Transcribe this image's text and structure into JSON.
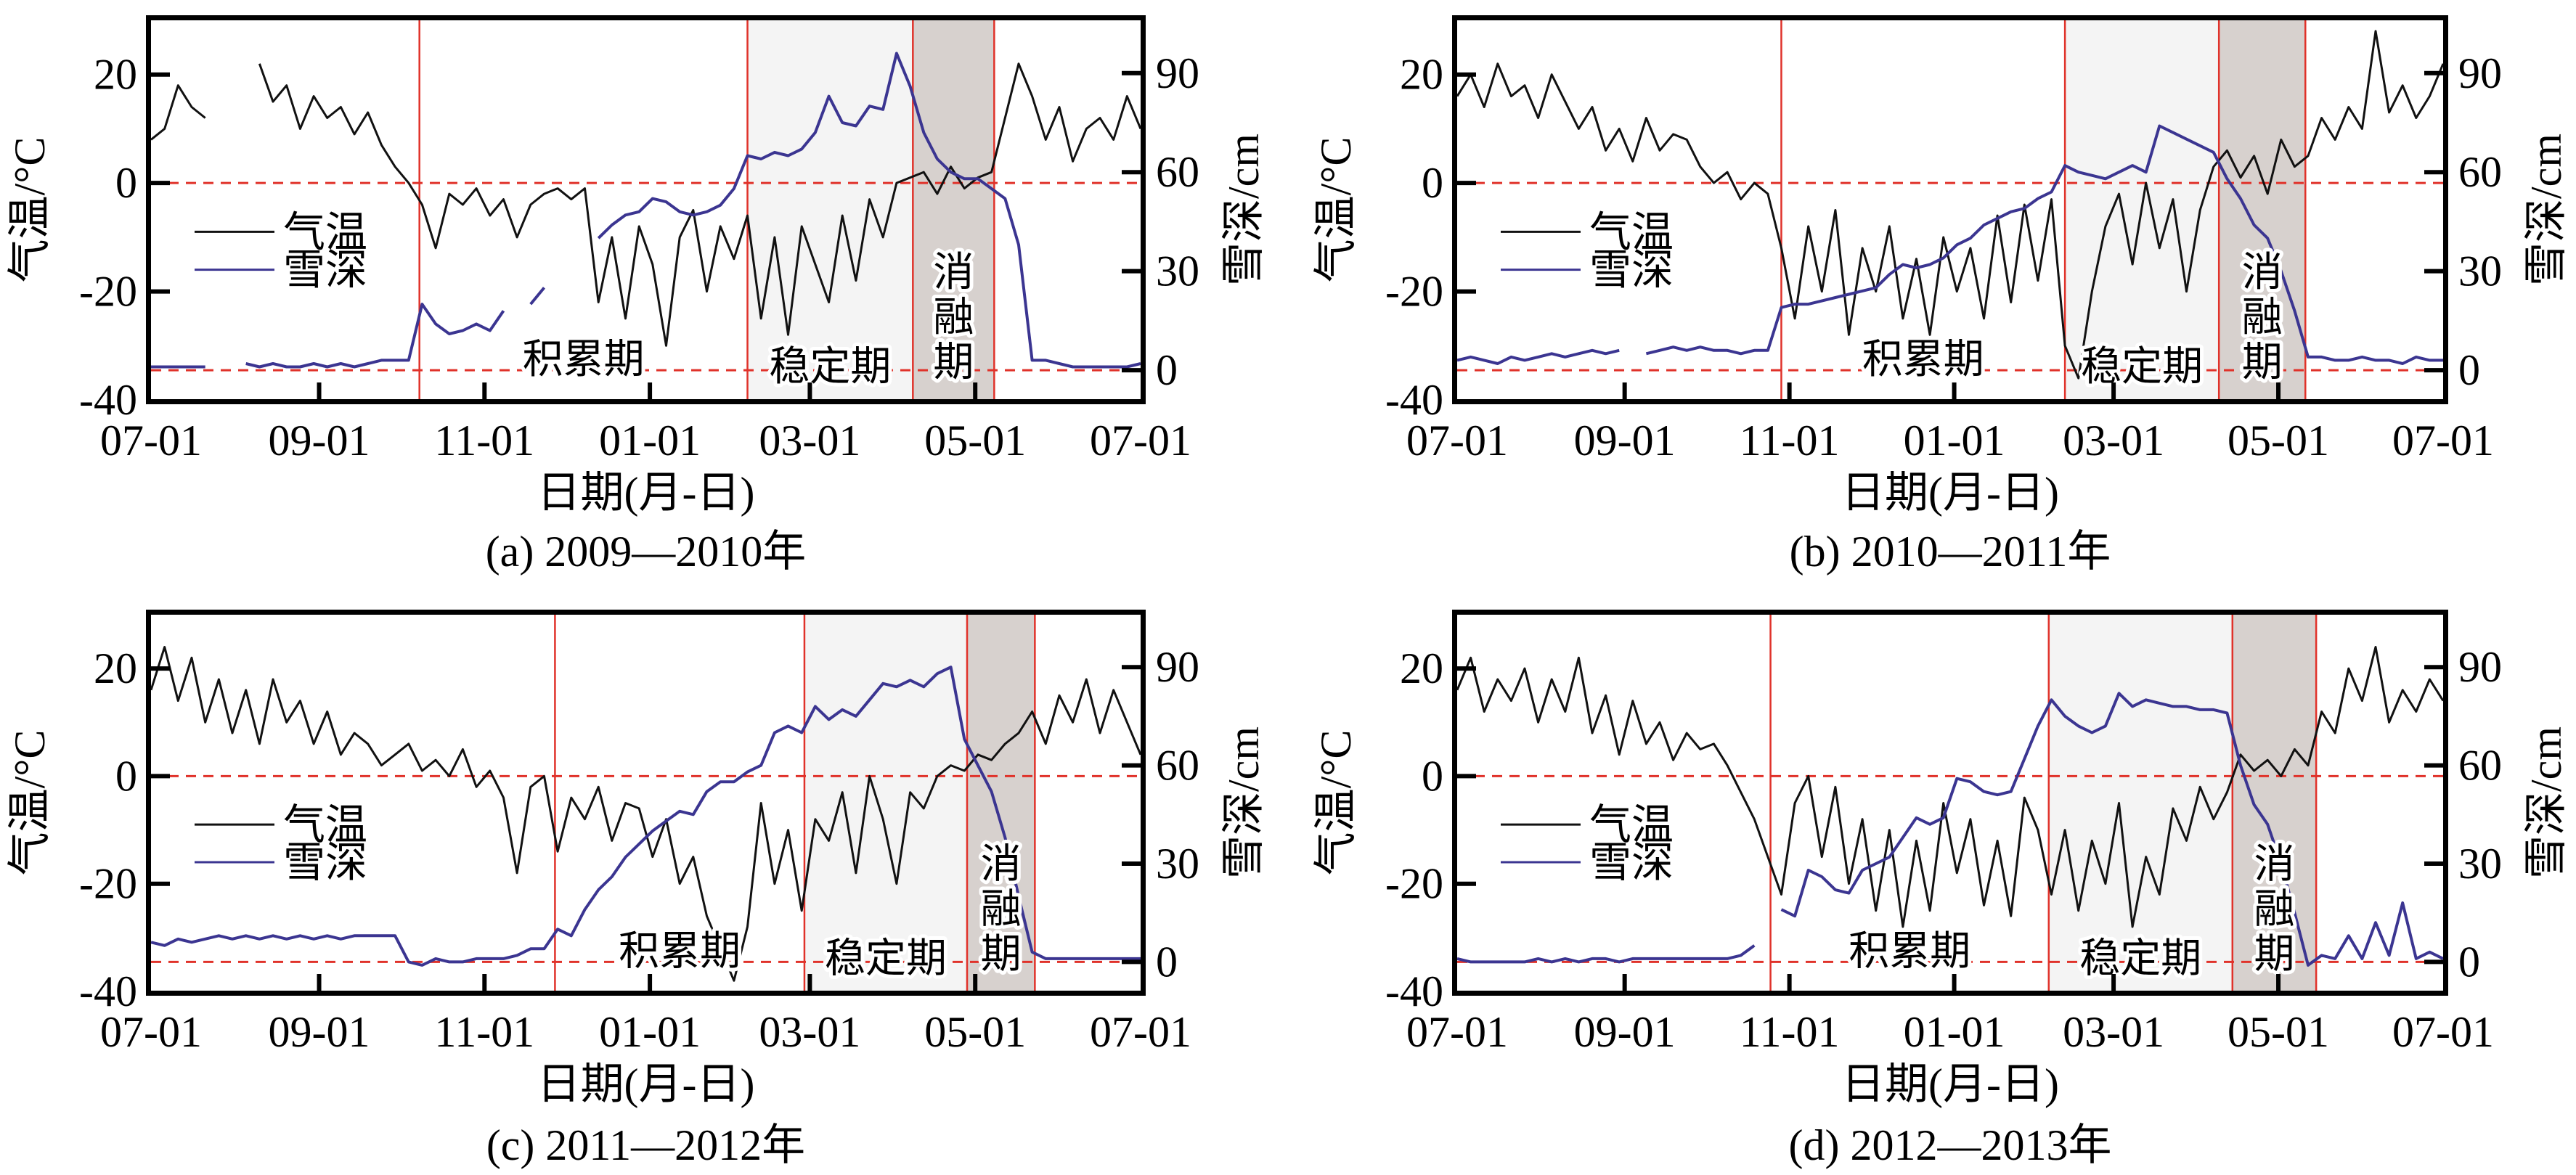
{
  "figure": {
    "legend": {
      "temp_label": "气温",
      "snow_label": "雪深"
    },
    "period_labels": {
      "accumulation": "积累期",
      "stable": "稳定期",
      "melt": [
        "消",
        "融",
        "期"
      ]
    },
    "colors": {
      "temp_line": "#111111",
      "snow_line": "#3b3591",
      "boundary_line": "#e0322a",
      "reference_dash": "#e0322a",
      "stable_fill": "#f4f4f4",
      "melt_fill": "#d7d1ce",
      "axis": "#000000"
    }
  },
  "chart_data": [
    {
      "type": "line",
      "panel": "a",
      "caption": "(a) 2009—2010年",
      "xlabel": "日期(月-日)",
      "ylabel_left": "气温/°C",
      "ylabel_right": "雪深/cm",
      "x_ticks": [
        "07-01",
        "09-01",
        "11-01",
        "01-01",
        "03-01",
        "05-01",
        "07-01"
      ],
      "x_tick_days": [
        0,
        62,
        123,
        184,
        243,
        304,
        365
      ],
      "x_range_days": [
        0,
        365
      ],
      "y_left_ticks": [
        20,
        0,
        -20,
        -40
      ],
      "y_left_range": [
        -40,
        30
      ],
      "y_right_ticks": [
        90,
        60,
        30,
        0
      ],
      "y_right_range": [
        -9,
        106
      ],
      "reference_lines": {
        "temp_zero": 0,
        "snow_zero": 0
      },
      "period_boundaries_days": [
        99,
        220,
        281,
        311
      ],
      "x_step_days": 5,
      "series": [
        {
          "name": "气温",
          "axis": "left",
          "values": [
            8,
            10,
            18,
            14,
            12,
            null,
            null,
            null,
            22,
            15,
            18,
            10,
            16,
            12,
            14,
            9,
            13,
            7,
            3,
            0,
            -4,
            -12,
            -2,
            -4,
            -1,
            -6,
            -3,
            -10,
            -4,
            -2,
            -1,
            -3,
            -1,
            -22,
            -10,
            -25,
            -8,
            -15,
            -30,
            -10,
            -5,
            -20,
            -8,
            -14,
            -6,
            -25,
            -10,
            -28,
            -8,
            -15,
            -22,
            -6,
            -18,
            -3,
            -10,
            0,
            1,
            2,
            -2,
            3,
            -1,
            1,
            2,
            12,
            22,
            16,
            8,
            14,
            4,
            10,
            12,
            8,
            16,
            10
          ]
        },
        {
          "name": "雪深",
          "axis": "right",
          "values": [
            1,
            1,
            1,
            1,
            1,
            null,
            null,
            2,
            1,
            2,
            1,
            1,
            2,
            1,
            2,
            1,
            2,
            3,
            3,
            3,
            20,
            14,
            11,
            12,
            14,
            12,
            18,
            null,
            20,
            25,
            null,
            30,
            null,
            40,
            44,
            47,
            48,
            52,
            51,
            48,
            47,
            48,
            50,
            55,
            65,
            64,
            66,
            65,
            67,
            72,
            83,
            75,
            74,
            80,
            79,
            96,
            86,
            72,
            64,
            60,
            58,
            58,
            55,
            52,
            38,
            3,
            3,
            2,
            1,
            1,
            1,
            1,
            1,
            2
          ]
        }
      ]
    },
    {
      "type": "line",
      "panel": "b",
      "caption": "(b) 2010—2011年",
      "xlabel": "日期(月-日)",
      "ylabel_left": "气温/°C",
      "ylabel_right": "雪深/cm",
      "x_ticks": [
        "07-01",
        "09-01",
        "11-01",
        "01-01",
        "03-01",
        "05-01",
        "07-01"
      ],
      "x_tick_days": [
        0,
        62,
        123,
        184,
        243,
        304,
        365
      ],
      "x_range_days": [
        0,
        365
      ],
      "y_left_ticks": [
        20,
        0,
        -20,
        -40
      ],
      "y_left_range": [
        -40,
        30
      ],
      "y_right_ticks": [
        90,
        60,
        30,
        0
      ],
      "y_right_range": [
        -9,
        106
      ],
      "reference_lines": {
        "temp_zero": 0,
        "snow_zero": 0
      },
      "period_boundaries_days": [
        120,
        225,
        282,
        314
      ],
      "x_step_days": 5,
      "series": [
        {
          "name": "气温",
          "axis": "left",
          "values": [
            16,
            20,
            14,
            22,
            16,
            18,
            12,
            20,
            15,
            10,
            14,
            6,
            10,
            4,
            12,
            6,
            9,
            8,
            3,
            0,
            2,
            -3,
            0,
            -2,
            -12,
            -25,
            -8,
            -20,
            -5,
            -28,
            -12,
            -20,
            -8,
            -25,
            -14,
            -28,
            -10,
            -20,
            -12,
            -25,
            -6,
            -22,
            -4,
            -18,
            -3,
            -30,
            -36,
            -20,
            -8,
            -2,
            -15,
            0,
            -12,
            -3,
            -20,
            -5,
            3,
            6,
            1,
            5,
            -2,
            8,
            3,
            5,
            12,
            8,
            14,
            10,
            28,
            13,
            18,
            12,
            16,
            22
          ]
        },
        {
          "name": "雪深",
          "axis": "right",
          "values": [
            3,
            4,
            3,
            2,
            4,
            3,
            4,
            5,
            4,
            5,
            6,
            5,
            6,
            null,
            5,
            6,
            7,
            6,
            7,
            6,
            6,
            5,
            6,
            6,
            19,
            20,
            20,
            21,
            22,
            23,
            24,
            25,
            29,
            32,
            31,
            32,
            34,
            38,
            40,
            44,
            46,
            48,
            49,
            52,
            54,
            62,
            60,
            59,
            58,
            60,
            62,
            60,
            74,
            72,
            70,
            68,
            66,
            58,
            52,
            44,
            40,
            30,
            18,
            4,
            4,
            3,
            3,
            4,
            3,
            3,
            2,
            4,
            3,
            3
          ]
        }
      ]
    },
    {
      "type": "line",
      "panel": "c",
      "caption": "(c) 2011—2012年",
      "xlabel": "日期(月-日)",
      "ylabel_left": "气温/°C",
      "ylabel_right": "雪深/cm",
      "x_ticks": [
        "07-01",
        "09-01",
        "11-01",
        "01-01",
        "03-01",
        "05-01",
        "07-01"
      ],
      "x_tick_days": [
        0,
        62,
        123,
        184,
        243,
        304,
        365
      ],
      "x_range_days": [
        0,
        365
      ],
      "y_left_ticks": [
        20,
        0,
        -20,
        -40
      ],
      "y_left_range": [
        -40,
        30
      ],
      "y_right_ticks": [
        90,
        60,
        30,
        0
      ],
      "y_right_range": [
        -9,
        106
      ],
      "reference_lines": {
        "temp_zero": 0,
        "snow_zero": 0
      },
      "period_boundaries_days": [
        149,
        241,
        301,
        326
      ],
      "x_step_days": 5,
      "series": [
        {
          "name": "气温",
          "axis": "left",
          "values": [
            16,
            24,
            14,
            22,
            10,
            18,
            8,
            16,
            6,
            18,
            10,
            14,
            6,
            12,
            4,
            8,
            6,
            2,
            4,
            6,
            1,
            3,
            0,
            5,
            -2,
            1,
            -4,
            -18,
            -2,
            0,
            -14,
            -4,
            -8,
            -2,
            -12,
            -5,
            -6,
            -15,
            -8,
            -20,
            -15,
            -26,
            -32,
            -38,
            -28,
            -5,
            -20,
            -10,
            -25,
            -8,
            -12,
            -3,
            -18,
            0,
            -8,
            -20,
            -3,
            -6,
            0,
            2,
            1,
            4,
            3,
            6,
            8,
            12,
            6,
            15,
            10,
            18,
            8,
            16,
            10,
            4
          ]
        },
        {
          "name": "雪深",
          "axis": "right",
          "values": [
            6,
            5,
            7,
            6,
            7,
            8,
            7,
            8,
            7,
            8,
            7,
            8,
            7,
            8,
            7,
            8,
            8,
            8,
            8,
            0,
            -1,
            1,
            0,
            0,
            1,
            1,
            1,
            2,
            4,
            4,
            10,
            8,
            16,
            22,
            26,
            32,
            36,
            40,
            43,
            46,
            45,
            52,
            55,
            55,
            58,
            60,
            70,
            72,
            70,
            78,
            74,
            77,
            75,
            80,
            85,
            84,
            86,
            84,
            88,
            90,
            68,
            60,
            52,
            38,
            20,
            3,
            1,
            1,
            1,
            1,
            1,
            1,
            1,
            1
          ]
        }
      ]
    },
    {
      "type": "line",
      "panel": "d",
      "caption": "(d) 2012—2013年",
      "xlabel": "日期(月-日)",
      "ylabel_left": "气温/°C",
      "ylabel_right": "雪深/cm",
      "x_ticks": [
        "07-01",
        "09-01",
        "11-01",
        "01-01",
        "03-01",
        "05-01",
        "07-01"
      ],
      "x_tick_days": [
        0,
        62,
        123,
        184,
        243,
        304,
        365
      ],
      "x_range_days": [
        0,
        365
      ],
      "y_left_ticks": [
        20,
        0,
        -20,
        -40
      ],
      "y_left_range": [
        -40,
        30
      ],
      "y_right_ticks": [
        90,
        60,
        30,
        0
      ],
      "y_right_range": [
        -9,
        106
      ],
      "reference_lines": {
        "temp_zero": 0,
        "snow_zero": 0
      },
      "period_boundaries_days": [
        116,
        219,
        287,
        318
      ],
      "x_step_days": 5,
      "series": [
        {
          "name": "气温",
          "axis": "left",
          "values": [
            16,
            22,
            12,
            18,
            14,
            20,
            10,
            18,
            12,
            22,
            8,
            15,
            4,
            14,
            6,
            10,
            3,
            8,
            5,
            6,
            2,
            -3,
            -8,
            -15,
            -22,
            -5,
            0,
            -15,
            -2,
            -20,
            -8,
            -25,
            -10,
            -28,
            -12,
            -25,
            -5,
            -18,
            -8,
            -24,
            -12,
            -26,
            -4,
            -10,
            -22,
            -10,
            -25,
            -12,
            -20,
            -5,
            -28,
            -15,
            -22,
            -6,
            -12,
            -2,
            -8,
            -3,
            4,
            1,
            3,
            0,
            5,
            2,
            12,
            8,
            20,
            14,
            24,
            10,
            16,
            12,
            18,
            14
          ]
        },
        {
          "name": "雪深",
          "axis": "right",
          "values": [
            1,
            0,
            0,
            0,
            0,
            0,
            1,
            0,
            1,
            0,
            1,
            1,
            0,
            1,
            1,
            1,
            1,
            1,
            1,
            1,
            1,
            2,
            5,
            null,
            16,
            14,
            28,
            26,
            22,
            21,
            28,
            30,
            32,
            38,
            44,
            42,
            44,
            56,
            55,
            52,
            51,
            52,
            62,
            72,
            80,
            75,
            72,
            70,
            72,
            82,
            78,
            80,
            79,
            78,
            78,
            77,
            77,
            76,
            60,
            48,
            42,
            30,
            15,
            -1,
            2,
            1,
            8,
            1,
            12,
            2,
            18,
            1,
            3,
            1
          ]
        }
      ]
    }
  ]
}
